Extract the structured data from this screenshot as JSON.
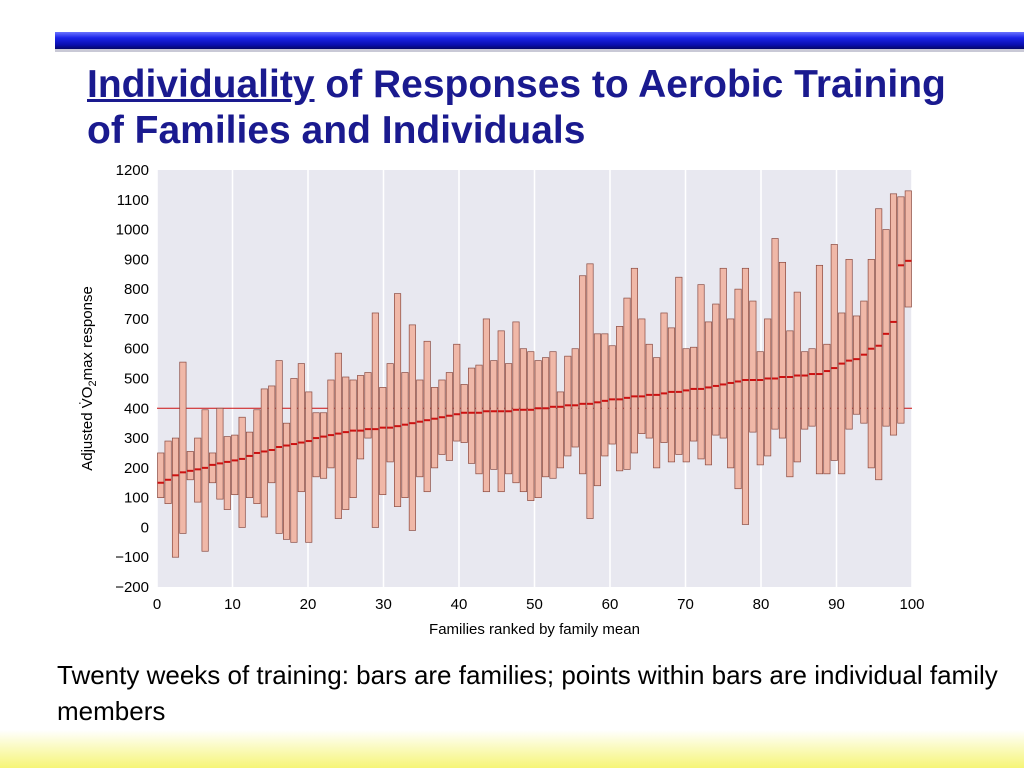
{
  "slide": {
    "title_highlight": "Individuality",
    "title_rest": " of Responses to Aerobic Training of Families and Individuals",
    "caption": "Twenty weeks of training: bars are families; points within bars are individual family members"
  },
  "colors": {
    "title": "#1a1a8f",
    "plot_bg": "#e8e8f0",
    "bar_fill": "#f0b8a8",
    "bar_stroke": "#8a4a40",
    "mean_line": "#cc1111",
    "ref_line": "#cc1111"
  },
  "chart_data": {
    "type": "bar",
    "xlabel": "Families ranked by family mean",
    "ylabel_parts": [
      "Adjusted ",
      "V̇O",
      "2",
      "max response"
    ],
    "xlim": [
      0,
      100
    ],
    "ylim": [
      -200,
      1200
    ],
    "xticks": [
      "0",
      "10",
      "20",
      "30",
      "40",
      "50",
      "60",
      "70",
      "80",
      "90",
      "100"
    ],
    "yticks": [
      "−200",
      "−100",
      "0",
      "100",
      "200",
      "300",
      "400",
      "500",
      "600",
      "700",
      "800",
      "900",
      "1000",
      "1100",
      "1200"
    ],
    "reference_line_y": 400,
    "grid": true,
    "families": [
      {
        "x": 1,
        "low": 100,
        "high": 250,
        "mean": 150
      },
      {
        "x": 2,
        "low": 80,
        "high": 290,
        "mean": 160
      },
      {
        "x": 3,
        "low": -100,
        "high": 300,
        "mean": 175
      },
      {
        "x": 4,
        "low": -20,
        "high": 555,
        "mean": 185
      },
      {
        "x": 5,
        "low": 160,
        "high": 255,
        "mean": 190
      },
      {
        "x": 6,
        "low": 85,
        "high": 300,
        "mean": 195
      },
      {
        "x": 7,
        "low": -80,
        "high": 395,
        "mean": 200
      },
      {
        "x": 8,
        "low": 150,
        "high": 250,
        "mean": 210
      },
      {
        "x": 9,
        "low": 95,
        "high": 400,
        "mean": 215
      },
      {
        "x": 10,
        "low": 60,
        "high": 305,
        "mean": 220
      },
      {
        "x": 11,
        "low": 110,
        "high": 310,
        "mean": 225
      },
      {
        "x": 12,
        "low": 0,
        "high": 370,
        "mean": 230
      },
      {
        "x": 13,
        "low": 100,
        "high": 320,
        "mean": 240
      },
      {
        "x": 14,
        "low": 80,
        "high": 395,
        "mean": 250
      },
      {
        "x": 15,
        "low": 35,
        "high": 465,
        "mean": 255
      },
      {
        "x": 16,
        "low": 150,
        "high": 475,
        "mean": 260
      },
      {
        "x": 17,
        "low": -20,
        "high": 560,
        "mean": 270
      },
      {
        "x": 18,
        "low": -40,
        "high": 350,
        "mean": 275
      },
      {
        "x": 19,
        "low": -50,
        "high": 500,
        "mean": 280
      },
      {
        "x": 20,
        "low": 120,
        "high": 550,
        "mean": 285
      },
      {
        "x": 21,
        "low": -50,
        "high": 455,
        "mean": 290
      },
      {
        "x": 22,
        "low": 170,
        "high": 385,
        "mean": 300
      },
      {
        "x": 23,
        "low": 165,
        "high": 385,
        "mean": 305
      },
      {
        "x": 24,
        "low": 200,
        "high": 495,
        "mean": 310
      },
      {
        "x": 25,
        "low": 30,
        "high": 585,
        "mean": 315
      },
      {
        "x": 26,
        "low": 60,
        "high": 505,
        "mean": 320
      },
      {
        "x": 27,
        "low": 100,
        "high": 495,
        "mean": 325
      },
      {
        "x": 28,
        "low": 230,
        "high": 510,
        "mean": 325
      },
      {
        "x": 29,
        "low": 300,
        "high": 520,
        "mean": 330
      },
      {
        "x": 30,
        "low": 0,
        "high": 720,
        "mean": 330
      },
      {
        "x": 31,
        "low": 110,
        "high": 470,
        "mean": 335
      },
      {
        "x": 32,
        "low": 220,
        "high": 550,
        "mean": 335
      },
      {
        "x": 33,
        "low": 70,
        "high": 785,
        "mean": 340
      },
      {
        "x": 34,
        "low": 100,
        "high": 520,
        "mean": 345
      },
      {
        "x": 35,
        "low": -10,
        "high": 680,
        "mean": 350
      },
      {
        "x": 36,
        "low": 170,
        "high": 495,
        "mean": 355
      },
      {
        "x": 37,
        "low": 120,
        "high": 625,
        "mean": 360
      },
      {
        "x": 38,
        "low": 200,
        "high": 470,
        "mean": 365
      },
      {
        "x": 39,
        "low": 245,
        "high": 495,
        "mean": 370
      },
      {
        "x": 40,
        "low": 225,
        "high": 520,
        "mean": 375
      },
      {
        "x": 41,
        "low": 290,
        "high": 615,
        "mean": 380
      },
      {
        "x": 42,
        "low": 285,
        "high": 480,
        "mean": 385
      },
      {
        "x": 43,
        "low": 215,
        "high": 535,
        "mean": 385
      },
      {
        "x": 44,
        "low": 180,
        "high": 545,
        "mean": 385
      },
      {
        "x": 45,
        "low": 120,
        "high": 700,
        "mean": 390
      },
      {
        "x": 46,
        "low": 195,
        "high": 560,
        "mean": 390
      },
      {
        "x": 47,
        "low": 120,
        "high": 660,
        "mean": 390
      },
      {
        "x": 48,
        "low": 180,
        "high": 550,
        "mean": 390
      },
      {
        "x": 49,
        "low": 150,
        "high": 690,
        "mean": 395
      },
      {
        "x": 50,
        "low": 120,
        "high": 600,
        "mean": 395
      },
      {
        "x": 51,
        "low": 90,
        "high": 590,
        "mean": 395
      },
      {
        "x": 52,
        "low": 100,
        "high": 560,
        "mean": 400
      },
      {
        "x": 53,
        "low": 170,
        "high": 570,
        "mean": 400
      },
      {
        "x": 54,
        "low": 165,
        "high": 590,
        "mean": 405
      },
      {
        "x": 55,
        "low": 200,
        "high": 455,
        "mean": 405
      },
      {
        "x": 56,
        "low": 240,
        "high": 575,
        "mean": 410
      },
      {
        "x": 57,
        "low": 270,
        "high": 600,
        "mean": 410
      },
      {
        "x": 58,
        "low": 180,
        "high": 845,
        "mean": 415
      },
      {
        "x": 59,
        "low": 30,
        "high": 885,
        "mean": 415
      },
      {
        "x": 60,
        "low": 140,
        "high": 650,
        "mean": 420
      },
      {
        "x": 61,
        "low": 240,
        "high": 650,
        "mean": 425
      },
      {
        "x": 62,
        "low": 280,
        "high": 610,
        "mean": 430
      },
      {
        "x": 63,
        "low": 190,
        "high": 675,
        "mean": 430
      },
      {
        "x": 64,
        "low": 195,
        "high": 770,
        "mean": 435
      },
      {
        "x": 65,
        "low": 250,
        "high": 870,
        "mean": 440
      },
      {
        "x": 66,
        "low": 315,
        "high": 700,
        "mean": 440
      },
      {
        "x": 67,
        "low": 300,
        "high": 615,
        "mean": 445
      },
      {
        "x": 68,
        "low": 200,
        "high": 570,
        "mean": 445
      },
      {
        "x": 69,
        "low": 285,
        "high": 720,
        "mean": 450
      },
      {
        "x": 70,
        "low": 220,
        "high": 670,
        "mean": 455
      },
      {
        "x": 71,
        "low": 245,
        "high": 840,
        "mean": 455
      },
      {
        "x": 72,
        "low": 220,
        "high": 600,
        "mean": 460
      },
      {
        "x": 73,
        "low": 290,
        "high": 605,
        "mean": 465
      },
      {
        "x": 74,
        "low": 230,
        "high": 815,
        "mean": 465
      },
      {
        "x": 75,
        "low": 210,
        "high": 690,
        "mean": 470
      },
      {
        "x": 76,
        "low": 310,
        "high": 750,
        "mean": 475
      },
      {
        "x": 77,
        "low": 300,
        "high": 870,
        "mean": 480
      },
      {
        "x": 78,
        "low": 200,
        "high": 700,
        "mean": 485
      },
      {
        "x": 79,
        "low": 130,
        "high": 800,
        "mean": 490
      },
      {
        "x": 80,
        "low": 10,
        "high": 870,
        "mean": 495
      },
      {
        "x": 81,
        "low": 320,
        "high": 760,
        "mean": 495
      },
      {
        "x": 82,
        "low": 210,
        "high": 590,
        "mean": 495
      },
      {
        "x": 83,
        "low": 240,
        "high": 700,
        "mean": 500
      },
      {
        "x": 84,
        "low": 330,
        "high": 970,
        "mean": 500
      },
      {
        "x": 85,
        "low": 300,
        "high": 890,
        "mean": 505
      },
      {
        "x": 86,
        "low": 170,
        "high": 660,
        "mean": 505
      },
      {
        "x": 87,
        "low": 220,
        "high": 790,
        "mean": 510
      },
      {
        "x": 88,
        "low": 330,
        "high": 590,
        "mean": 510
      },
      {
        "x": 89,
        "low": 340,
        "high": 600,
        "mean": 515
      },
      {
        "x": 90,
        "low": 180,
        "high": 880,
        "mean": 515
      },
      {
        "x": 91,
        "low": 180,
        "high": 615,
        "mean": 525
      },
      {
        "x": 92,
        "low": 225,
        "high": 950,
        "mean": 535
      },
      {
        "x": 93,
        "low": 180,
        "high": 720,
        "mean": 550
      },
      {
        "x": 94,
        "low": 330,
        "high": 900,
        "mean": 560
      },
      {
        "x": 95,
        "low": 380,
        "high": 710,
        "mean": 565
      },
      {
        "x": 96,
        "low": 350,
        "high": 760,
        "mean": 580
      },
      {
        "x": 97,
        "low": 200,
        "high": 900,
        "mean": 600
      },
      {
        "x": 98,
        "low": 160,
        "high": 1070,
        "mean": 610
      },
      {
        "x": 99,
        "low": 340,
        "high": 1000,
        "mean": 650
      },
      {
        "x": 100,
        "low": 310,
        "high": 1120,
        "mean": 690
      },
      {
        "x": 101,
        "low": 350,
        "high": 1110,
        "mean": 880
      },
      {
        "x": 102,
        "low": 740,
        "high": 1130,
        "mean": 895
      }
    ]
  }
}
